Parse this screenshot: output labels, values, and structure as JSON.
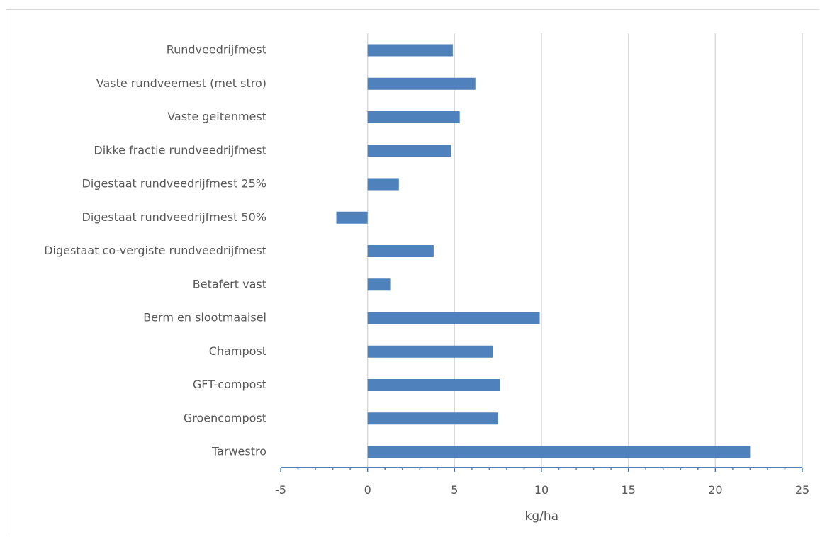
{
  "chart_data": {
    "type": "bar",
    "orientation": "horizontal",
    "categories": [
      "Rundveedrijfmest",
      "Vaste rundveemest (met stro)",
      "Vaste geitenmest",
      "Dikke fractie rundveedrijfmest",
      "Digestaat rundveedrijfmest 25%",
      "Digestaat rundveedrijfmest 50%",
      "Digestaat co-vergiste rundveedrijfmest",
      "Betafert vast",
      "Berm en slootmaaisel",
      "Champost",
      "GFT-compost",
      "Groencompost",
      "Tarwestro"
    ],
    "values": [
      4.9,
      6.2,
      5.3,
      4.8,
      1.8,
      -1.8,
      3.8,
      1.3,
      9.9,
      7.2,
      7.6,
      7.5,
      22.0
    ],
    "xlabel": "kg/ha",
    "xlim": [
      -5,
      25
    ],
    "xticks": [
      -5,
      0,
      5,
      10,
      15,
      20,
      25
    ],
    "xtick_labels": [
      "-5",
      "0",
      "5",
      "10",
      "15",
      "20",
      "25"
    ],
    "grid": true,
    "bar_color": "#4f81bd"
  }
}
